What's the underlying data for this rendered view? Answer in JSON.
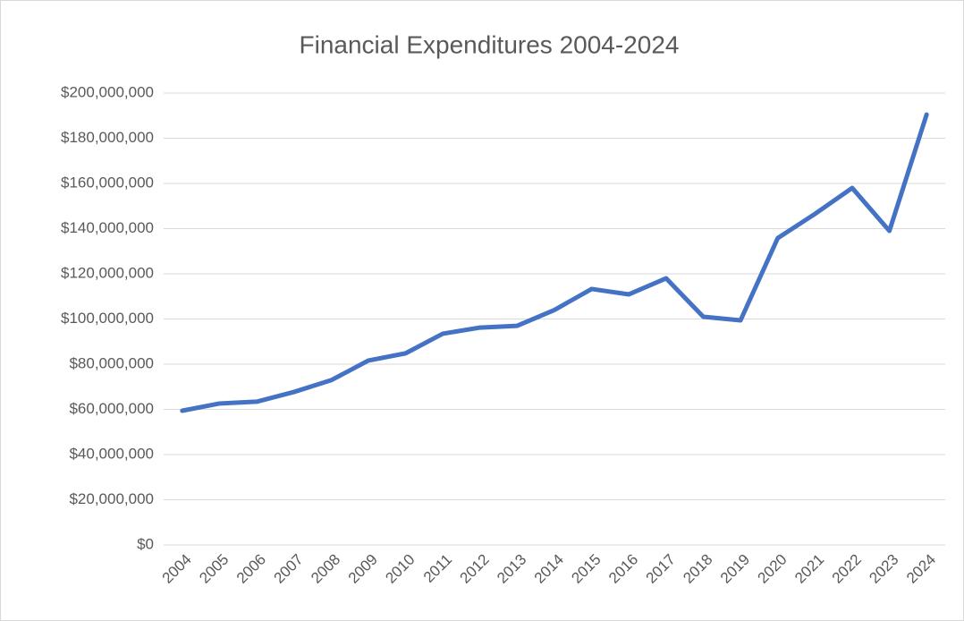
{
  "chart_data": {
    "type": "line",
    "title": "Financial Expenditures 2004-2024",
    "categories": [
      "2004",
      "2005",
      "2006",
      "2007",
      "2008",
      "2009",
      "2010",
      "2011",
      "2012",
      "2013",
      "2014",
      "2015",
      "2016",
      "2017",
      "2018",
      "2019",
      "2020",
      "2021",
      "2022",
      "2023",
      "2024"
    ],
    "series": [
      {
        "name": "Expenditures",
        "color": "#4472c4",
        "values": [
          59400000,
          62600000,
          63400000,
          67700000,
          72900000,
          81600000,
          84800000,
          93500000,
          96200000,
          97000000,
          104000000,
          113300000,
          110900000,
          118000000,
          101000000,
          99400000,
          135800000,
          146500000,
          158000000,
          139000000,
          190500000
        ]
      }
    ],
    "ylim": [
      0,
      200000000
    ],
    "yticks": [
      {
        "value": 0,
        "label": "$0"
      },
      {
        "value": 20000000,
        "label": "$20,000,000"
      },
      {
        "value": 40000000,
        "label": "$40,000,000"
      },
      {
        "value": 60000000,
        "label": "$60,000,000"
      },
      {
        "value": 80000000,
        "label": "$80,000,000"
      },
      {
        "value": 100000000,
        "label": "$100,000,000"
      },
      {
        "value": 120000000,
        "label": "$120,000,000"
      },
      {
        "value": 140000000,
        "label": "$140,000,000"
      },
      {
        "value": 160000000,
        "label": "$160,000,000"
      },
      {
        "value": 180000000,
        "label": "$180,000,000"
      },
      {
        "value": 200000000,
        "label": "$200,000,000"
      }
    ],
    "grid": true
  }
}
